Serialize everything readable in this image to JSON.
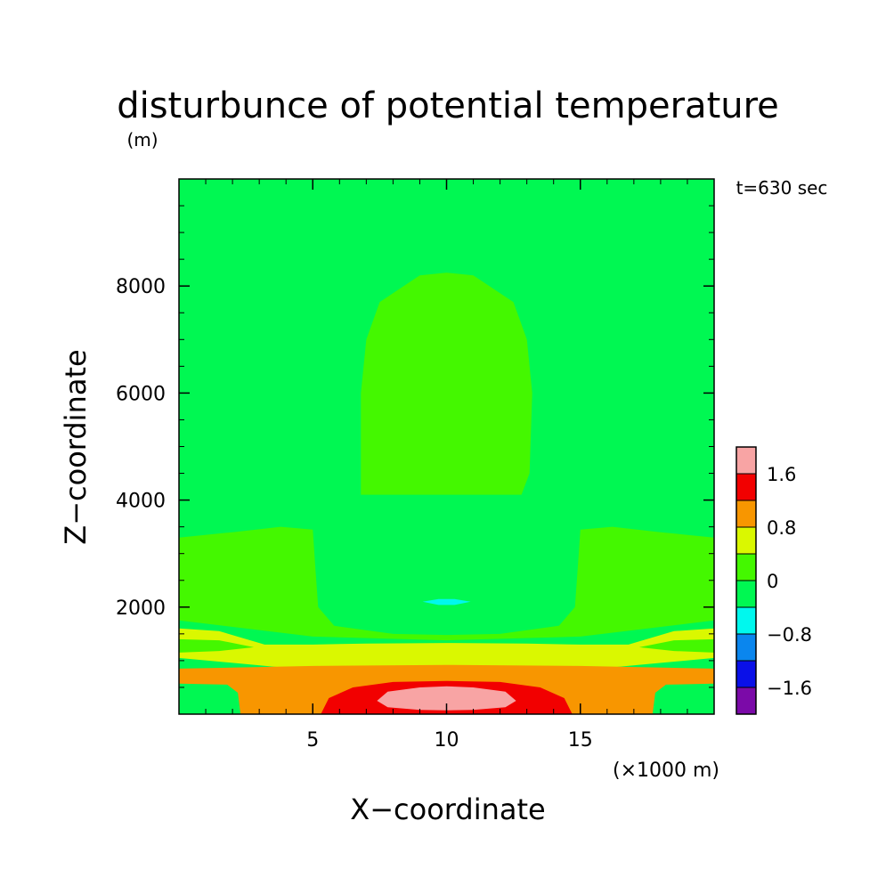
{
  "chart_data": {
    "type": "heatmap",
    "title": "disturbunce of potential temperature",
    "title_unit": "(m)",
    "time_label": "t=630 sec",
    "xlabel": "X−coordinate",
    "ylabel": "Z−coordinate",
    "x_unit_label": "(×1000 m)",
    "xlim": [
      0,
      20
    ],
    "ylim": [
      0,
      10000
    ],
    "x_ticks": [
      5,
      10,
      15
    ],
    "x_tick_labels": [
      "5",
      "10",
      "15"
    ],
    "y_ticks": [
      2000,
      4000,
      6000,
      8000
    ],
    "y_tick_labels": [
      "2000",
      "4000",
      "6000",
      "8000"
    ],
    "colorbar": {
      "levels": [
        -2.0,
        -1.6,
        -1.2,
        -0.8,
        -0.4,
        0,
        0.4,
        0.8,
        1.2,
        1.6,
        2.0
      ],
      "colors": [
        "#7b0aa8",
        "#0a10e8",
        "#0a86ee",
        "#00f8ee",
        "#00f852",
        "#44f800",
        "#daf800",
        "#f89600",
        "#f20000",
        "#f8a4a4"
      ],
      "tick_values": [
        -1.6,
        -0.8,
        0,
        0.8,
        1.6
      ],
      "tick_labels": [
        "−1.6",
        "−0.8",
        "0",
        "0.8",
        "1.6"
      ]
    },
    "regions": [
      {
        "level": 0.2,
        "points": [
          [
            6.8,
            4100
          ],
          [
            12.8,
            4100
          ],
          [
            13.1,
            4500
          ],
          [
            13.2,
            6000
          ],
          [
            13.0,
            7000
          ],
          [
            12.5,
            7700
          ],
          [
            11.0,
            8200
          ],
          [
            10.0,
            8250
          ],
          [
            9.0,
            8200
          ],
          [
            7.5,
            7700
          ],
          [
            7.0,
            7000
          ],
          [
            6.8,
            6000
          ],
          [
            6.8,
            4500
          ]
        ]
      },
      {
        "level": 0.2,
        "points": [
          [
            0,
            1750
          ],
          [
            0,
            3300
          ],
          [
            2.0,
            3400
          ],
          [
            3.8,
            3500
          ],
          [
            5.0,
            3450
          ],
          [
            5.1,
            2700
          ],
          [
            5.2,
            2000
          ],
          [
            5.8,
            1650
          ],
          [
            8.0,
            1500
          ],
          [
            10.0,
            1480
          ],
          [
            12.0,
            1500
          ],
          [
            14.2,
            1650
          ],
          [
            14.8,
            2000
          ],
          [
            14.9,
            2700
          ],
          [
            15.0,
            3450
          ],
          [
            16.2,
            3500
          ],
          [
            18.0,
            3400
          ],
          [
            20,
            3300
          ],
          [
            20,
            1750
          ],
          [
            15.0,
            1450
          ],
          [
            10.0,
            1380
          ],
          [
            5.0,
            1450
          ]
        ]
      },
      {
        "level": -0.6,
        "points": [
          [
            9.1,
            2100
          ],
          [
            9.7,
            2150
          ],
          [
            10.3,
            2150
          ],
          [
            10.9,
            2100
          ],
          [
            10.3,
            2040
          ],
          [
            9.7,
            2040
          ]
        ]
      },
      {
        "level": 0.6,
        "points": [
          [
            0,
            1050
          ],
          [
            0,
            1600
          ],
          [
            1.5,
            1550
          ],
          [
            3.2,
            1300
          ],
          [
            5.0,
            1300
          ],
          [
            7.0,
            1320
          ],
          [
            10.0,
            1330
          ],
          [
            13.0,
            1320
          ],
          [
            15.0,
            1300
          ],
          [
            16.8,
            1300
          ],
          [
            18.5,
            1550
          ],
          [
            20,
            1600
          ],
          [
            20,
            1050
          ],
          [
            15.0,
            820
          ],
          [
            10.0,
            800
          ],
          [
            5.0,
            820
          ]
        ]
      },
      {
        "level": 0.2,
        "points": [
          [
            0,
            1150
          ],
          [
            0,
            1400
          ],
          [
            1.5,
            1380
          ],
          [
            2.8,
            1250
          ],
          [
            1.5,
            1180
          ]
        ]
      },
      {
        "level": 0.2,
        "points": [
          [
            20,
            1150
          ],
          [
            20,
            1400
          ],
          [
            18.5,
            1380
          ],
          [
            17.2,
            1250
          ],
          [
            18.5,
            1180
          ]
        ]
      },
      {
        "level": 1.0,
        "points": [
          [
            0,
            570
          ],
          [
            0,
            850
          ],
          [
            5.0,
            900
          ],
          [
            10.0,
            920
          ],
          [
            15.0,
            900
          ],
          [
            20,
            850
          ],
          [
            20,
            570
          ],
          [
            18.2,
            550
          ],
          [
            17.8,
            400
          ],
          [
            17.7,
            0
          ],
          [
            2.3,
            0
          ],
          [
            2.2,
            400
          ],
          [
            1.8,
            550
          ]
        ]
      },
      {
        "level": 1.4,
        "points": [
          [
            5.3,
            0
          ],
          [
            5.6,
            300
          ],
          [
            6.5,
            500
          ],
          [
            8.0,
            600
          ],
          [
            10.0,
            620
          ],
          [
            12.0,
            600
          ],
          [
            13.5,
            500
          ],
          [
            14.4,
            300
          ],
          [
            14.7,
            0
          ]
        ]
      },
      {
        "level": 1.8,
        "points": [
          [
            7.4,
            250
          ],
          [
            7.8,
            420
          ],
          [
            9.0,
            500
          ],
          [
            10.0,
            520
          ],
          [
            11.0,
            500
          ],
          [
            12.2,
            420
          ],
          [
            12.6,
            250
          ],
          [
            12.2,
            130
          ],
          [
            11.0,
            80
          ],
          [
            10.0,
            70
          ],
          [
            9.0,
            80
          ],
          [
            7.8,
            130
          ]
        ]
      }
    ]
  }
}
